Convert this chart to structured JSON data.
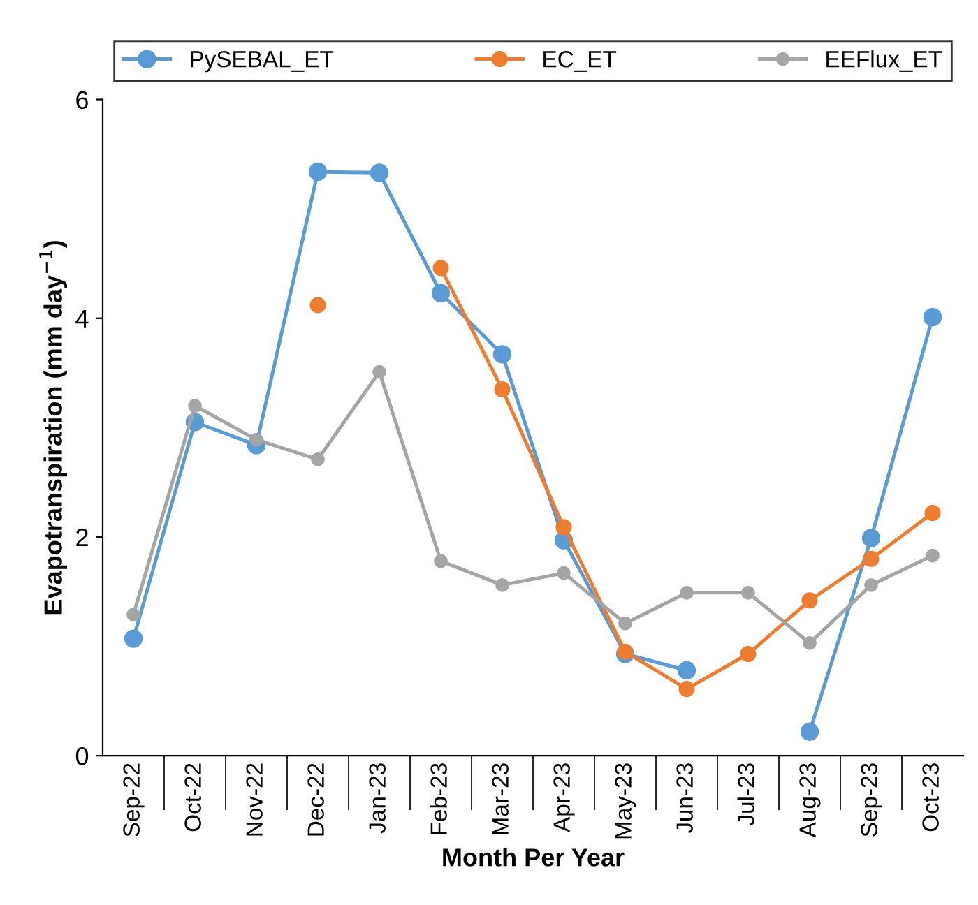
{
  "chart_data": {
    "type": "line",
    "xlabel": "Month Per Year",
    "ylabel": "Evapotranspiration (mm day$^{−1}$)",
    "categories": [
      "Sep-22",
      "Oct-22",
      "Nov-22",
      "Dec-22",
      "Jan-23",
      "Feb-23",
      "Mar-23",
      "Apr-23",
      "May-23",
      "Jun-23",
      "Jul-23",
      "Aug-23",
      "Sep-23",
      "Oct-23"
    ],
    "series": [
      {
        "name": "PySEBAL_ET",
        "color": "#5b9bd5",
        "values": [
          1.07,
          3.05,
          2.84,
          5.34,
          5.33,
          4.23,
          3.67,
          1.97,
          0.93,
          0.78,
          null,
          0.22,
          1.99,
          4.01
        ]
      },
      {
        "name": "EC_ET",
        "color": "#ed7d31",
        "values": [
          null,
          null,
          null,
          4.12,
          null,
          4.46,
          3.35,
          2.09,
          0.95,
          0.61,
          0.93,
          1.42,
          1.8,
          2.22
        ]
      },
      {
        "name": "EEFlux_ET",
        "color": "#a5a5a5",
        "values": [
          1.29,
          3.2,
          2.89,
          2.71,
          3.51,
          1.78,
          1.56,
          1.67,
          1.21,
          1.49,
          1.49,
          1.03,
          1.56,
          1.83
        ]
      }
    ],
    "ylim": [
      0,
      6
    ],
    "yticks": [
      0,
      2,
      4,
      6
    ],
    "grid": false,
    "legend": "top",
    "marker": "circle",
    "line_style": "solid"
  }
}
